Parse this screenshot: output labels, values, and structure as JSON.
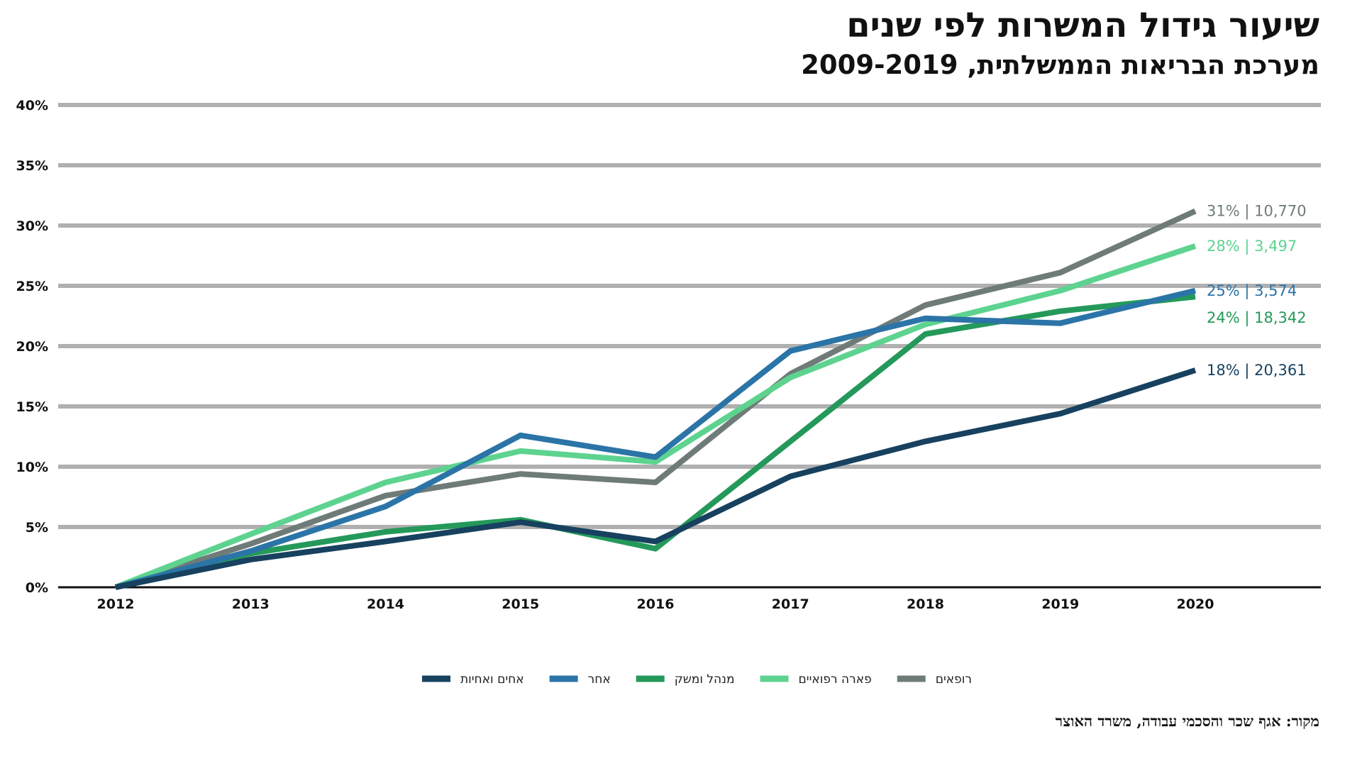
{
  "header": {
    "title": "שיעור גידול המשרות לפי שנים",
    "subtitle": "מערכת הבריאות הממשלתית, 2009-2019"
  },
  "footer": {
    "source": "מקור: אגף שכר והסכמי עבודה, משרד האוצר"
  },
  "chart_data": {
    "type": "line",
    "x": [
      "2012",
      "2013",
      "2014",
      "2015",
      "2016",
      "2017",
      "2018",
      "2019",
      "2020"
    ],
    "ylim": [
      0,
      40
    ],
    "yticks": [
      0,
      5,
      10,
      15,
      20,
      25,
      30,
      35,
      40
    ],
    "ytick_labels": [
      "0%",
      "5%",
      "10%",
      "15%",
      "20%",
      "25%",
      "30%",
      "35%",
      "40%"
    ],
    "grid": true,
    "legend_position": "bottom-center",
    "series": [
      {
        "name": "רופאים",
        "color": "#6f7b78",
        "values": [
          0,
          3.6,
          7.6,
          9.4,
          8.7,
          17.7,
          23.4,
          26.1,
          31.2
        ],
        "end_label": "31% | 10,770"
      },
      {
        "name": "פארה רפואיים",
        "color": "#5dd38f",
        "values": [
          0,
          4.4,
          8.7,
          11.3,
          10.4,
          17.4,
          21.8,
          24.6,
          28.3
        ],
        "end_label": "28% | 3,497"
      },
      {
        "name": "מנהל ומשק",
        "color": "#24995a",
        "values": [
          0,
          2.8,
          4.6,
          5.6,
          3.2,
          12.1,
          21.0,
          22.9,
          24.1
        ],
        "end_label": "24% | 18,342"
      },
      {
        "name": "אחר",
        "color": "#2b74a7",
        "values": [
          0,
          3.0,
          6.7,
          12.6,
          10.8,
          19.6,
          22.3,
          21.9,
          24.6
        ],
        "end_label": "25% | 3,574"
      },
      {
        "name": "אחים ואחיות",
        "color": "#17415f",
        "values": [
          0,
          2.3,
          3.8,
          5.4,
          3.8,
          9.2,
          12.1,
          14.4,
          18.0
        ],
        "end_label": "18% | 20,361"
      }
    ]
  }
}
